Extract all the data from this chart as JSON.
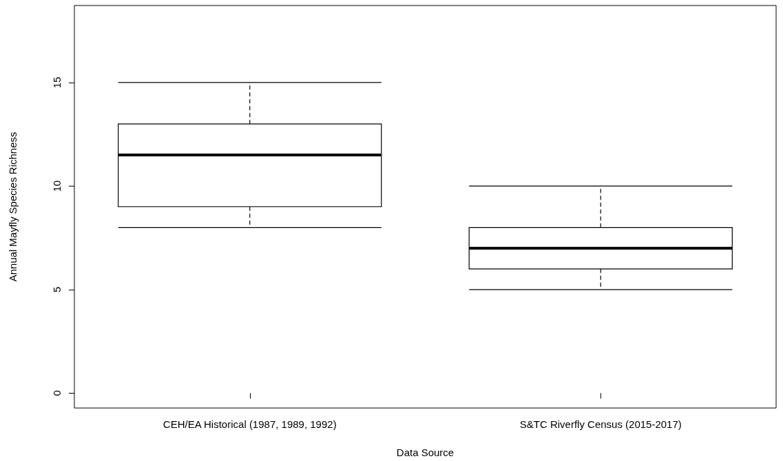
{
  "chart_data": {
    "type": "box",
    "xlabel": "Data Source",
    "ylabel": "Annual Mayfly Species Richness",
    "categories": [
      "CEH/EA Historical (1987, 1989, 1992)",
      "S&TC Riverfly Census (2015-2017)"
    ],
    "boxes": [
      {
        "low": 8,
        "q1": 9,
        "median": 11.5,
        "q3": 13,
        "high": 15
      },
      {
        "low": 5,
        "q1": 6,
        "median": 7,
        "q3": 8,
        "high": 10
      }
    ],
    "ylim": [
      -0.72,
      18.72
    ],
    "yticks": [
      0,
      5,
      10,
      15
    ]
  }
}
